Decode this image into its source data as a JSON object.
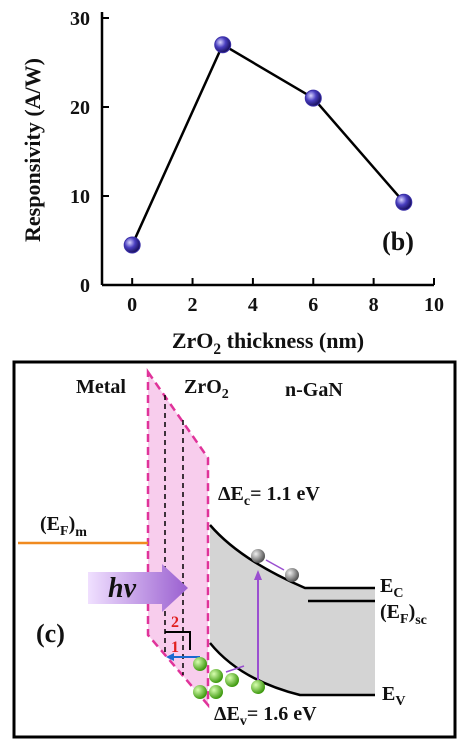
{
  "chart_data": {
    "type": "line",
    "x": [
      0,
      3,
      6,
      9
    ],
    "values": [
      4.5,
      27,
      21,
      9.3
    ],
    "color": "#3a2fa8",
    "xlim": [
      -1,
      10
    ],
    "xticks": [
      0,
      2,
      4,
      6,
      8,
      10
    ],
    "ylim": [
      0,
      30
    ],
    "yticks": [
      0,
      10,
      20,
      30
    ],
    "xlabel": [
      "ZrO",
      "2",
      " thickness (nm)"
    ],
    "ylabel": "Responsivity (A/W)",
    "annotation": "(b)"
  },
  "diagram": {
    "label": "(c)",
    "metal": "Metal",
    "oxide": [
      "ZrO",
      "2"
    ],
    "semiconductor": "n-GaN",
    "delta_ec": [
      "ΔE",
      "c",
      "= 1.1 eV"
    ],
    "ef_metal": [
      "(E",
      "F",
      ")",
      "m"
    ],
    "photon": "hv",
    "ec": [
      "E",
      "C"
    ],
    "ef_sc": [
      "(E",
      "F",
      ")",
      "sc"
    ],
    "ev": [
      "E",
      "V"
    ],
    "delta_ev": [
      "ΔE",
      "v",
      "= 1.6 eV"
    ],
    "path_2": "2",
    "path_1": "1"
  }
}
